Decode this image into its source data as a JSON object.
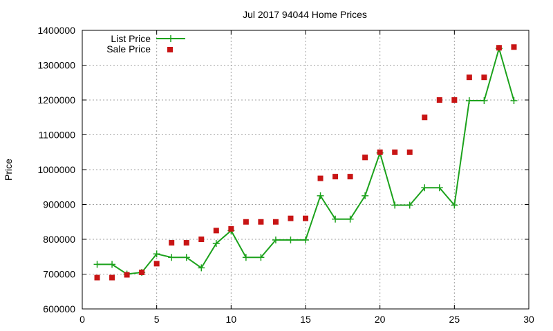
{
  "chart_data": {
    "type": "line",
    "title": "Jul 2017 94044 Home Prices",
    "xlabel": "",
    "ylabel": "Price",
    "xlim": [
      0,
      30
    ],
    "ylim": [
      600000,
      1400000
    ],
    "xticks": [
      0,
      5,
      10,
      15,
      20,
      25,
      30
    ],
    "yticks": [
      600000,
      700000,
      800000,
      900000,
      1000000,
      1100000,
      1200000,
      1300000,
      1400000
    ],
    "grid": true,
    "legend_position": "top-left",
    "series": [
      {
        "name": "List Price",
        "style": "line-with-plus-markers",
        "color": "#1ca21c",
        "x": [
          1,
          2,
          3,
          4,
          5,
          6,
          7,
          8,
          9,
          10,
          11,
          12,
          13,
          14,
          15,
          16,
          17,
          18,
          19,
          20,
          21,
          22,
          23,
          24,
          25,
          26,
          27,
          28,
          29
        ],
        "y": [
          728000,
          728000,
          700000,
          705000,
          758000,
          748000,
          748000,
          718000,
          788000,
          825000,
          748000,
          748000,
          798000,
          798000,
          798000,
          925000,
          858000,
          858000,
          925000,
          1048000,
          898000,
          898000,
          948000,
          948000,
          898000,
          1198000,
          1198000,
          1348000,
          1198000
        ]
      },
      {
        "name": "Sale Price",
        "style": "square-markers",
        "color": "#c81414",
        "x": [
          1,
          2,
          3,
          4,
          5,
          6,
          7,
          8,
          9,
          10,
          11,
          12,
          13,
          14,
          15,
          16,
          17,
          18,
          19,
          20,
          21,
          22,
          23,
          24,
          25,
          26,
          27,
          28,
          29
        ],
        "y": [
          690000,
          690000,
          698000,
          705000,
          730000,
          790000,
          790000,
          800000,
          825000,
          830000,
          850000,
          850000,
          850000,
          860000,
          860000,
          975000,
          980000,
          980000,
          1035000,
          1050000,
          1050000,
          1050000,
          1150000,
          1200000,
          1200000,
          1265000,
          1265000,
          1350000,
          1352000
        ]
      }
    ]
  }
}
